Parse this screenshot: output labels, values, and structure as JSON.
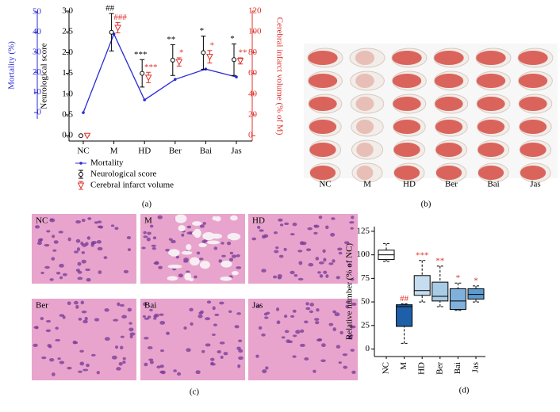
{
  "chart_data": [
    {
      "type": "mixed",
      "panel_label": "(a)",
      "categories": [
        "NC",
        "M",
        "HD",
        "Ber",
        "Bai",
        "Jas"
      ],
      "y_label": "Neurological score",
      "y2_label": "Cerebral infarct volume (% of M)",
      "y3_label": "Mortality (%)",
      "ylim": [
        -0.13,
        3.0
      ],
      "yticks": [
        {
          "value": 0,
          "label": "0.0"
        },
        0.5,
        {
          "value": 1,
          "label": "1.0"
        },
        1.5,
        {
          "value": 2,
          "label": "2.0"
        },
        2.5,
        {
          "value": 3,
          "label": "3.0"
        }
      ],
      "y2lim": [
        -5.2,
        120
      ],
      "y2ticks": [
        0,
        20,
        40,
        60,
        80,
        100,
        120
      ],
      "y3lim": [
        -3.1,
        50
      ],
      "y3ticks": [
        0,
        10,
        20,
        30,
        40,
        50
      ],
      "series": [
        {
          "name": "Mortality",
          "color": "#2b2bd6",
          "axis": "y3",
          "style": "line",
          "values": [
            0,
            39,
            6.3,
            16.5,
            21.6,
            17.7
          ]
        },
        {
          "name": "Neurological score",
          "color": "#000000",
          "axis": "y",
          "style": "errorbar",
          "marker": "circle",
          "values": [
            0,
            2.49,
            1.5,
            1.82,
            2.0,
            1.83
          ],
          "errors": [
            0,
            0.45,
            0.33,
            0.37,
            0.4,
            0.38
          ],
          "annotations": [
            null,
            "##",
            "***",
            "**",
            "*",
            "*"
          ]
        },
        {
          "name": "Cerebral infarct volume",
          "color": "#e0302a",
          "axis": "y2",
          "style": "errorbar",
          "marker": "triangle",
          "values": [
            0,
            104,
            56,
            71,
            76,
            72
          ],
          "errors": [
            0,
            5,
            5,
            4,
            6,
            3
          ],
          "annotations": [
            null,
            "###",
            "***",
            "*",
            "*",
            "**"
          ]
        }
      ]
    },
    {
      "type": "box",
      "panel_label": "(d)",
      "categories": [
        "NC",
        "M",
        "HD",
        "Ber",
        "Bai",
        "Jas"
      ],
      "y_label": "Relative number (% of NC)",
      "ylim": [
        -8,
        130
      ],
      "yticks": [
        0,
        25,
        50,
        75,
        100,
        125
      ],
      "min": [
        93,
        6,
        50,
        45,
        41,
        50
      ],
      "q1": [
        95,
        24,
        57,
        51,
        42,
        53
      ],
      "median": [
        100,
        45,
        62,
        56,
        51,
        58
      ],
      "q3": [
        105,
        47,
        78,
        71,
        64,
        64
      ],
      "max": [
        112,
        48,
        94,
        88,
        70,
        67
      ],
      "colors": [
        "#ffffff",
        "#1f5fa8",
        "#c6dcef",
        "#a8cbe6",
        "#7fb1dc",
        "#5a9bd0"
      ],
      "annotation_color": "#e0302a",
      "annotations": [
        null,
        "##",
        "***",
        "**",
        "*",
        "*"
      ]
    }
  ],
  "photo_panel": {
    "panel_label": "(b)",
    "labels": [
      "NC",
      "M",
      "HD",
      "Ber",
      "Bai",
      "Jas"
    ]
  },
  "histology_panel": {
    "panel_label": "(c)",
    "labels": [
      "NC",
      "M",
      "HD",
      "Ber",
      "Bai",
      "Jas"
    ]
  }
}
